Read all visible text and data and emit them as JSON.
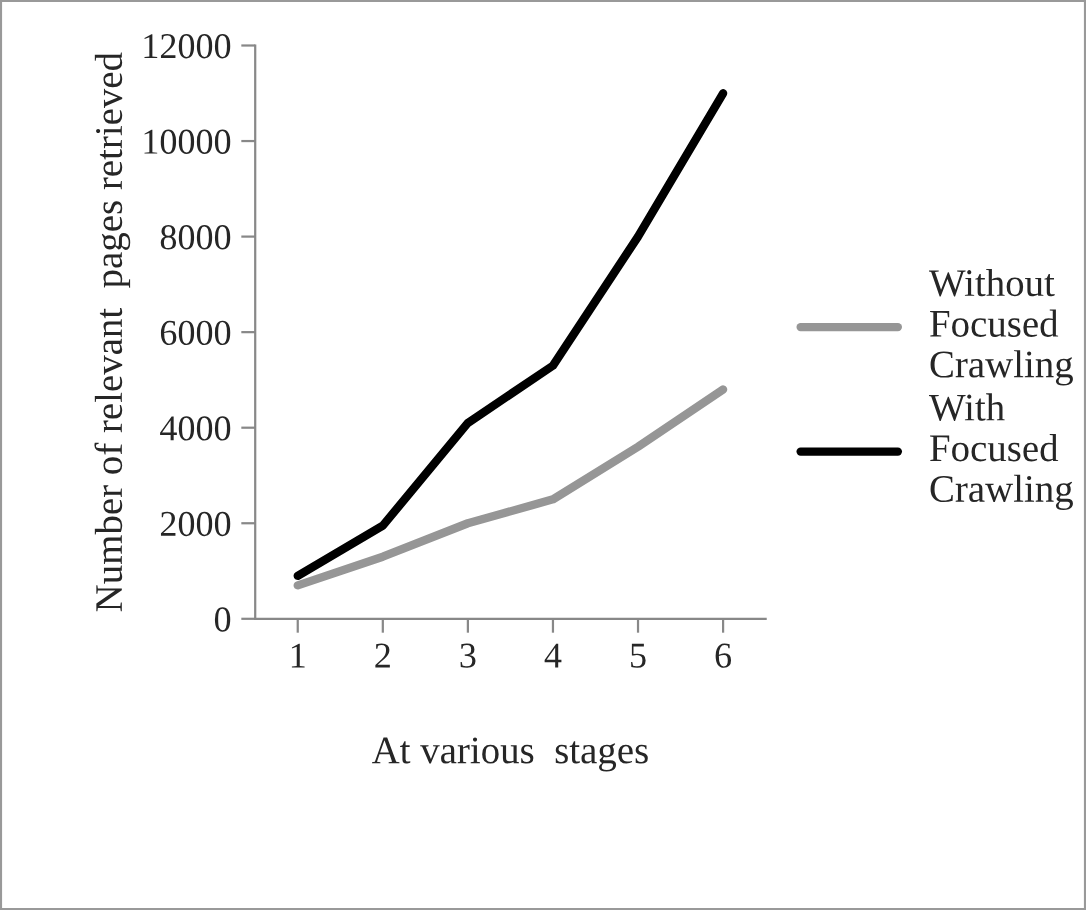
{
  "chart_data": {
    "type": "line",
    "xlabel": "At various  stages",
    "ylabel": "Number of relevant  pages retrieved",
    "categories": [
      "1",
      "2",
      "3",
      "4",
      "5",
      "6"
    ],
    "series": [
      {
        "name": "Without Focused Crawling",
        "color": "#969696",
        "values": [
          700,
          1300,
          2000,
          2500,
          3600,
          4800
        ]
      },
      {
        "name": "With Focused Crawling",
        "color": "#000000",
        "values": [
          900,
          1950,
          4100,
          5300,
          8000,
          11000
        ]
      }
    ],
    "ylim": [
      0,
      12000
    ],
    "yticks": [
      0,
      2000,
      4000,
      6000,
      8000,
      10000,
      12000
    ],
    "grid": false,
    "legend": "right",
    "marker": "none",
    "line_style": "solid"
  }
}
